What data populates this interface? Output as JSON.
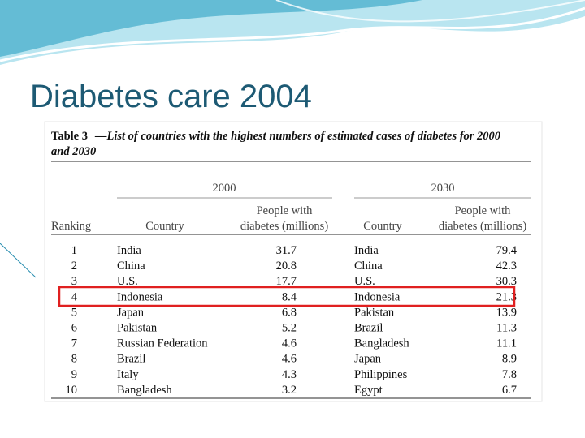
{
  "title": "Diabetes care 2004",
  "table": {
    "caption": {
      "label": "Table 3",
      "lines": [
        "—List of countries with the highest numbers of estimated cases of diabetes for 2000",
        "and 2030"
      ]
    },
    "groups": [
      "2000",
      "2030"
    ],
    "headers": [
      [
        "Ranking"
      ],
      [
        "Country"
      ],
      [
        "People with",
        "diabetes (millions)"
      ],
      [
        "Country"
      ],
      [
        "People with",
        "diabetes (millions)"
      ]
    ],
    "rows": [
      [
        "1",
        "India",
        "31.7",
        "India",
        "79.4"
      ],
      [
        "2",
        "China",
        "20.8",
        "China",
        "42.3"
      ],
      [
        "3",
        "U.S.",
        "17.7",
        "U.S.",
        "30.3"
      ],
      [
        "4",
        "Indonesia",
        "8.4",
        "Indonesia",
        "21.3"
      ],
      [
        "5",
        "Japan",
        "6.8",
        "Pakistan",
        "13.9"
      ],
      [
        "6",
        "Pakistan",
        "5.2",
        "Brazil",
        "11.3"
      ],
      [
        "7",
        "Russian Federation",
        "4.6",
        "Bangladesh",
        "11.1"
      ],
      [
        "8",
        "Brazil",
        "4.6",
        "Japan",
        "8.9"
      ],
      [
        "9",
        "Italy",
        "4.3",
        "Philippines",
        "7.8"
      ],
      [
        "10",
        "Bangladesh",
        "3.2",
        "Egypt",
        "6.7"
      ]
    ]
  }
}
